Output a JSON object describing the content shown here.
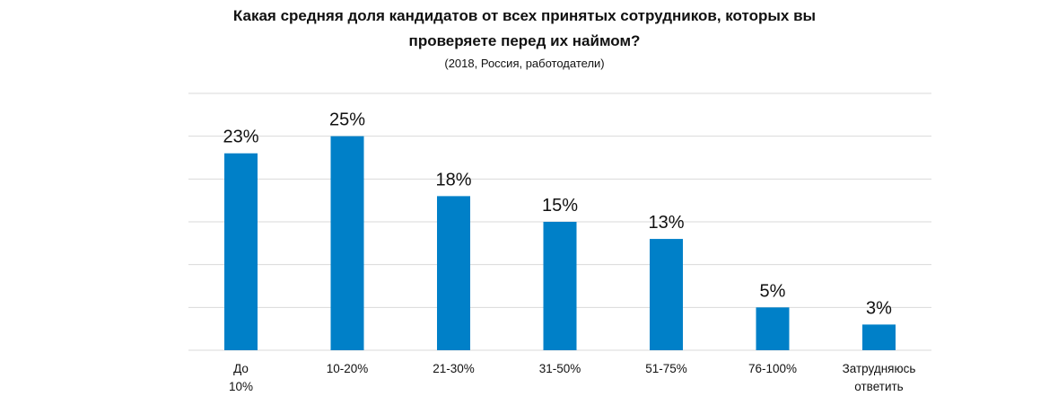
{
  "chart_data": {
    "type": "bar",
    "title_line1": "Какая средняя доля кандидатов от всех принятых сотрудников, которых вы",
    "title_line2": "проверяете перед их наймом?",
    "subtitle": "(2018, Россия, работодатели)",
    "categories": [
      "До 10%",
      "10-20%",
      "21-30%",
      "31-50%",
      "51-75%",
      "76-100%",
      "Затрудняюсь ответить"
    ],
    "values": [
      23,
      25,
      18,
      15,
      13,
      5,
      3
    ],
    "value_labels": [
      "23%",
      "25%",
      "18%",
      "15%",
      "13%",
      "5%",
      "3%"
    ],
    "xlabel": "",
    "ylabel": "",
    "ylim": [
      0,
      30
    ],
    "ytick_step": 5,
    "grid": true,
    "bar_color": "#0080c8",
    "grid_color": "#d9d9d9"
  }
}
